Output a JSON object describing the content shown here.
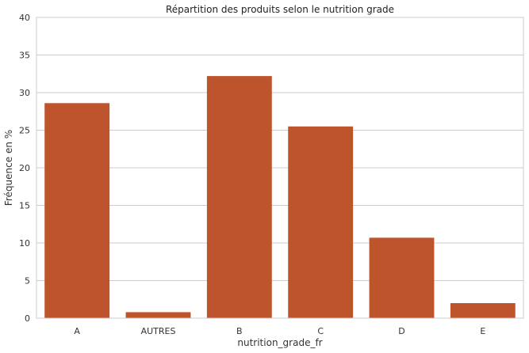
{
  "chart_data": {
    "type": "bar",
    "title": "Répartition des produits selon le nutrition grade",
    "xlabel": "nutrition_grade_fr",
    "ylabel": "Fréquence en %",
    "categories": [
      "A",
      "AUTRES",
      "B",
      "C",
      "D",
      "E"
    ],
    "values": [
      28.6,
      0.8,
      32.2,
      25.5,
      10.7,
      2.0
    ],
    "ylim": [
      0,
      40
    ],
    "yticks": [
      "0",
      "5",
      "10",
      "15",
      "20",
      "25",
      "30",
      "35",
      "40"
    ],
    "grid": "horizontal",
    "colors": {
      "bar": "#bd542c",
      "grid": "#cccccc",
      "frame": "#cccccc"
    }
  }
}
